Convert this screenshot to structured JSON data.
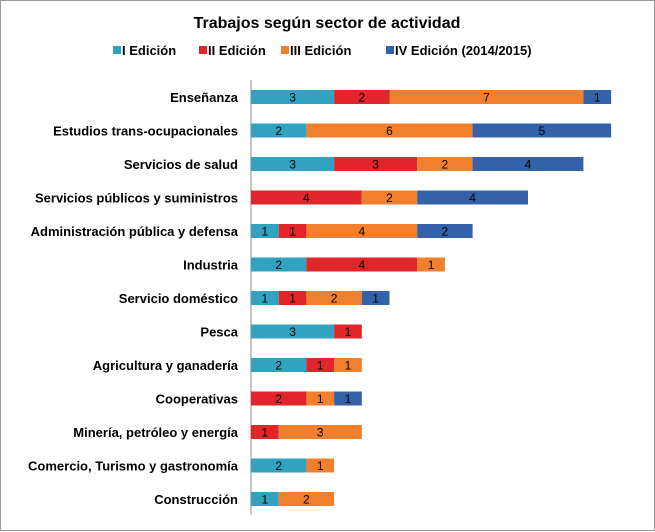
{
  "chart_data": {
    "type": "bar",
    "orientation": "horizontal",
    "stacked": true,
    "title": "Trabajos según sector de actividad",
    "legend_position": "top",
    "grid": false,
    "xlim": [
      0,
      13
    ],
    "categories": [
      "Enseñanza",
      "Estudios trans-ocupacionales",
      "Servicios de salud",
      "Servicios públicos y suministros",
      "Administración pública y defensa",
      "Industria",
      "Servicio doméstico",
      "Pesca",
      "Agricultura y ganadería",
      "Cooperativas",
      "Minería, petróleo y energía",
      "Comercio, Turismo y gastronomía",
      "Construcción"
    ],
    "series": [
      {
        "name": "I Edición",
        "color": "#31A2C0",
        "values": [
          3,
          2,
          3,
          0,
          1,
          2,
          1,
          3,
          2,
          0,
          0,
          2,
          1
        ]
      },
      {
        "name": "II Edición",
        "color": "#E0262A",
        "values": [
          2,
          0,
          3,
          4,
          1,
          4,
          1,
          1,
          1,
          2,
          1,
          0,
          0
        ]
      },
      {
        "name": "III Edición",
        "color": "#F07F2E",
        "values": [
          7,
          6,
          2,
          2,
          4,
          1,
          2,
          0,
          1,
          1,
          3,
          1,
          2
        ]
      },
      {
        "name": "IV Edición (2014/2015)",
        "color": "#3462A8",
        "values": [
          1,
          5,
          4,
          4,
          2,
          0,
          1,
          0,
          0,
          1,
          0,
          0,
          0
        ]
      }
    ]
  }
}
